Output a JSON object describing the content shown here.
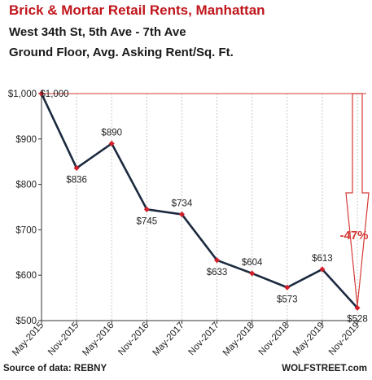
{
  "header": {
    "title": "Brick & Mortar Retail Rents, Manhattan",
    "subtitle_line1": "West 34th St, 5th Ave - 7th Ave",
    "subtitle_line2": "Ground Floor, Avg. Asking Rent/Sq. Ft."
  },
  "footer": {
    "source": "Source of data: REBNY",
    "brand": "WOLFSTREET.com"
  },
  "annotation": {
    "change_label": "-47%"
  },
  "colors": {
    "title": "#c0161c",
    "line": "#1c2a3f",
    "marker": "#d21f2b",
    "annotation": "#d43a36",
    "grid": "#c8c8c8"
  },
  "chart_data": {
    "type": "line",
    "title": "Brick & Mortar Retail Rents, Manhattan",
    "subtitle": "West 34th St, 5th Ave - 7th Ave / Ground Floor, Avg. Asking Rent/Sq. Ft.",
    "xlabel": "",
    "ylabel": "",
    "categories": [
      "May-2015",
      "Nov-2015",
      "May-2016",
      "Nov-2016",
      "May-2017",
      "Nov-2017",
      "May-2018",
      "Nov-2018",
      "May-2019",
      "Nov-2019"
    ],
    "values": [
      1000,
      836,
      890,
      745,
      734,
      633,
      604,
      573,
      613,
      528
    ],
    "data_labels": [
      "$1,000",
      "$836",
      "$890",
      "$745",
      "$734",
      "$633",
      "$604",
      "$573",
      "$613",
      "$528"
    ],
    "ylim": [
      500,
      1000
    ],
    "yticks": [
      500,
      600,
      700,
      800,
      900,
      1000
    ],
    "ytick_labels": [
      "$500",
      "$600",
      "$700",
      "$800",
      "$900",
      "$1,000"
    ],
    "grid": "vertical",
    "legend": "none"
  }
}
